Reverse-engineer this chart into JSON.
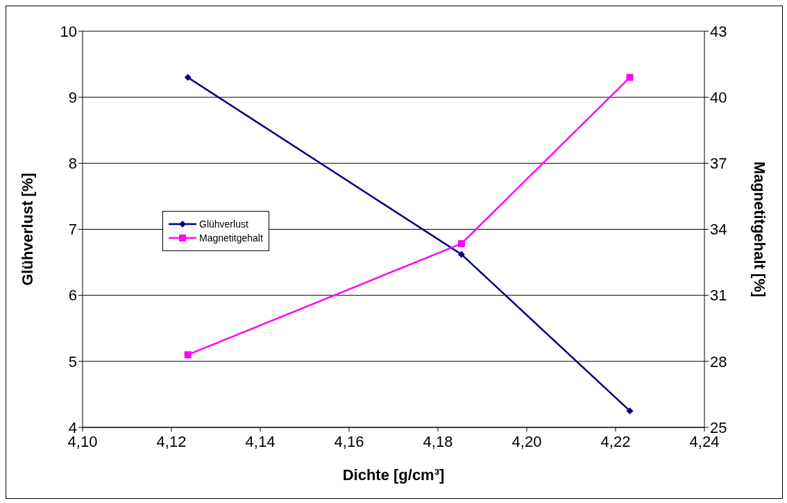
{
  "chart_data": {
    "type": "line",
    "xlabel": "Dichte [g/cm³]",
    "ylabel": "Glühverlust [%]",
    "y2label": "Magnetitgehalt [%]",
    "x": [
      4.1237,
      4.1853,
      4.2232
    ],
    "series": [
      {
        "name": "Glühverlust",
        "color": "#000080",
        "values": [
          9.3,
          6.62,
          4.25
        ],
        "marker": "diamond"
      },
      {
        "name": "Magnetitgehalt",
        "color": "#ff00ff",
        "values": [
          28.3,
          33.35,
          40.9
        ],
        "marker": "square",
        "axis": "y2"
      }
    ],
    "xlim": [
      4.1,
      4.24
    ],
    "xticks": [
      {
        "value": 4.1,
        "label": "4,10"
      },
      {
        "value": 4.12,
        "label": "4,12"
      },
      {
        "value": 4.14,
        "label": "4,14"
      },
      {
        "value": 4.16,
        "label": "4,16"
      },
      {
        "value": 4.18,
        "label": "4,18"
      },
      {
        "value": 4.2,
        "label": "4,20"
      },
      {
        "value": 4.22,
        "label": "4,22"
      },
      {
        "value": 4.24,
        "label": "4,24"
      }
    ],
    "ylim": [
      4,
      10
    ],
    "yticks": [
      4,
      5,
      6,
      7,
      8,
      9,
      10
    ],
    "y2lim": [
      25,
      43
    ],
    "y2ticks": [
      25,
      28,
      31,
      34,
      37,
      40,
      43
    ],
    "grid": "y",
    "legend": "left",
    "line_style": "solid"
  }
}
